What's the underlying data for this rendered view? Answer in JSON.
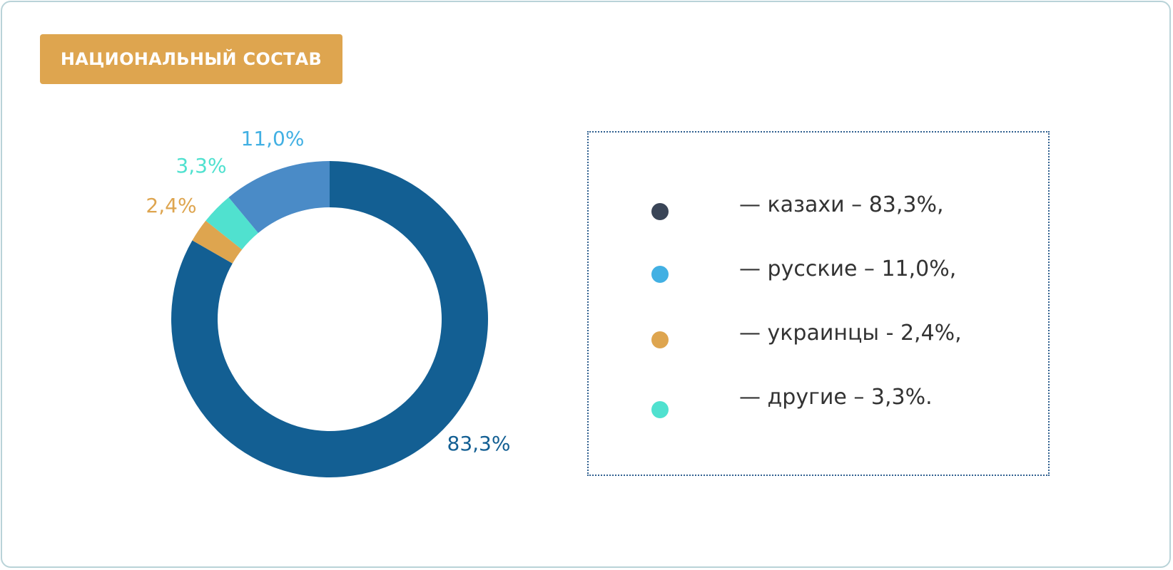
{
  "title": "НАЦИОНАЛЬНЫЙ СОСТАВ",
  "chart_data": {
    "type": "pie",
    "title": "НАЦИОНАЛЬНЫЙ СОСТАВ",
    "slices": [
      {
        "label": "83,3%",
        "value": 83.3,
        "color": "#135f93"
      },
      {
        "label": "2,4%",
        "value": 2.4,
        "color": "#dea54f"
      },
      {
        "label": "3,3%",
        "value": 3.3,
        "color": "#50e1cf"
      },
      {
        "label": "11,0%",
        "value": 11.0,
        "color": "#4a8bc7"
      }
    ]
  },
  "legend": [
    {
      "text": "— казахи – 83,3%,",
      "dot_color": "#3a4557"
    },
    {
      "text": "— русские – 11,0%,",
      "dot_color": "#42b0e3"
    },
    {
      "text": "— украинцы - 2,4%,",
      "dot_color": "#dea54f"
    },
    {
      "text": "— другие – 3,3%.",
      "dot_color": "#50e1cf"
    }
  ]
}
